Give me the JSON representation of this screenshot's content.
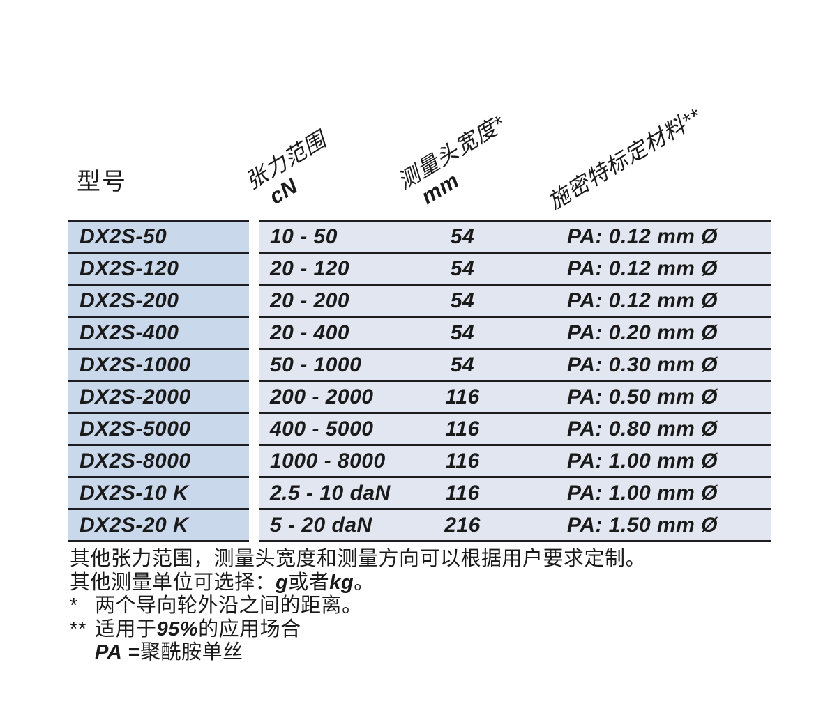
{
  "page": {
    "background": "#ffffff",
    "colors": {
      "model_column_bg": "#cad8ec",
      "data_section_bg": "#e2e6f1",
      "rule_line": "#1d1d22",
      "text": "#1a1a1a"
    }
  },
  "table": {
    "corner_label": "型号",
    "columns": [
      {
        "label": "张力范围",
        "unit": "cN"
      },
      {
        "label": "测量头宽度*",
        "unit": "mm"
      },
      {
        "label": "施密特标定材料**",
        "unit": ""
      }
    ],
    "rows": [
      {
        "model": "DX2S-50",
        "range": "10 - 50",
        "width_mm": "54",
        "material": "PA: 0.12 mm Ø"
      },
      {
        "model": "DX2S-120",
        "range": "20 - 120",
        "width_mm": "54",
        "material": "PA: 0.12 mm Ø"
      },
      {
        "model": "DX2S-200",
        "range": "20 - 200",
        "width_mm": "54",
        "material": "PA: 0.12 mm Ø"
      },
      {
        "model": "DX2S-400",
        "range": "20 - 400",
        "width_mm": "54",
        "material": "PA: 0.20 mm Ø"
      },
      {
        "model": "DX2S-1000",
        "range": "50 - 1000",
        "width_mm": "54",
        "material": "PA: 0.30 mm Ø"
      },
      {
        "model": "DX2S-2000",
        "range": "200 - 2000",
        "width_mm": "116",
        "material": "PA: 0.50 mm Ø"
      },
      {
        "model": "DX2S-5000",
        "range": "400 - 5000",
        "width_mm": "116",
        "material": "PA: 0.80 mm Ø"
      },
      {
        "model": "DX2S-8000",
        "range": "1000 - 8000",
        "width_mm": "116",
        "material": "PA: 1.00 mm Ø"
      },
      {
        "model": "DX2S-10 K",
        "range": "2.5 - 10 daN",
        "width_mm": "116",
        "material": "PA: 1.00 mm Ø"
      },
      {
        "model": "DX2S-20 K",
        "range": "5 - 20 daN",
        "width_mm": "216",
        "material": "PA: 1.50 mm Ø"
      }
    ]
  },
  "notes": {
    "line1": "其他张力范围，测量头宽度和测量方向可以根据用户要求定制。",
    "line2": {
      "pre": "其他测量单位可选择：",
      "unit1": "g",
      "mid": " 或者 ",
      "unit2": "kg",
      "end": "。"
    },
    "line3": {
      "marker": "*",
      "text": "两个导向轮外沿之间的距离。"
    },
    "line4": {
      "marker": "**",
      "pre": "适用于",
      "em": "95%",
      "post": "的应用场合"
    },
    "line5": {
      "em": "PA",
      "eq": " =",
      "text": "聚酰胺单丝"
    }
  }
}
